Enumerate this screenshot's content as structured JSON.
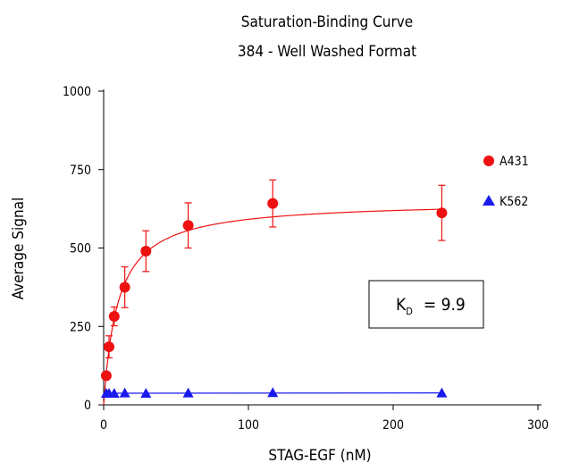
{
  "chart_data": {
    "type": "scatter",
    "title": "Saturation-Binding Curve",
    "subtitle": "384 - Well Washed Format",
    "xlabel": "STAG-EGF (nM)",
    "ylabel": "Average Signal",
    "xlim": [
      0,
      300
    ],
    "ylim": [
      0,
      1000
    ],
    "x_ticks": [
      "0",
      "100",
      "200",
      "300"
    ],
    "y_ticks": [
      "0",
      "250",
      "500",
      "750",
      "1000"
    ],
    "grid": false,
    "legend_position": "right",
    "series": [
      {
        "name": "A431",
        "color": "#ee1111",
        "marker": "circle",
        "x": [
          1.8,
          3.7,
          7.3,
          14.6,
          29.2,
          58.4,
          116.8,
          233.6
        ],
        "y": [
          93,
          185,
          282,
          375,
          490,
          572,
          642,
          612
        ],
        "error": [
          0,
          35,
          30,
          65,
          65,
          72,
          75,
          88
        ],
        "fit": {
          "Bmax": 650,
          "Kd": 9.9
        }
      },
      {
        "name": "K562",
        "color": "#1a1aee",
        "marker": "triangle",
        "x": [
          1.8,
          3.7,
          7.3,
          14.6,
          29.2,
          58.4,
          116.8,
          233.6
        ],
        "y": [
          37,
          37,
          37,
          38,
          37,
          38,
          39,
          38
        ],
        "fit_line": true
      }
    ],
    "annotation": {
      "label": "K",
      "subscript": "D",
      "value": "= 9.9"
    }
  }
}
